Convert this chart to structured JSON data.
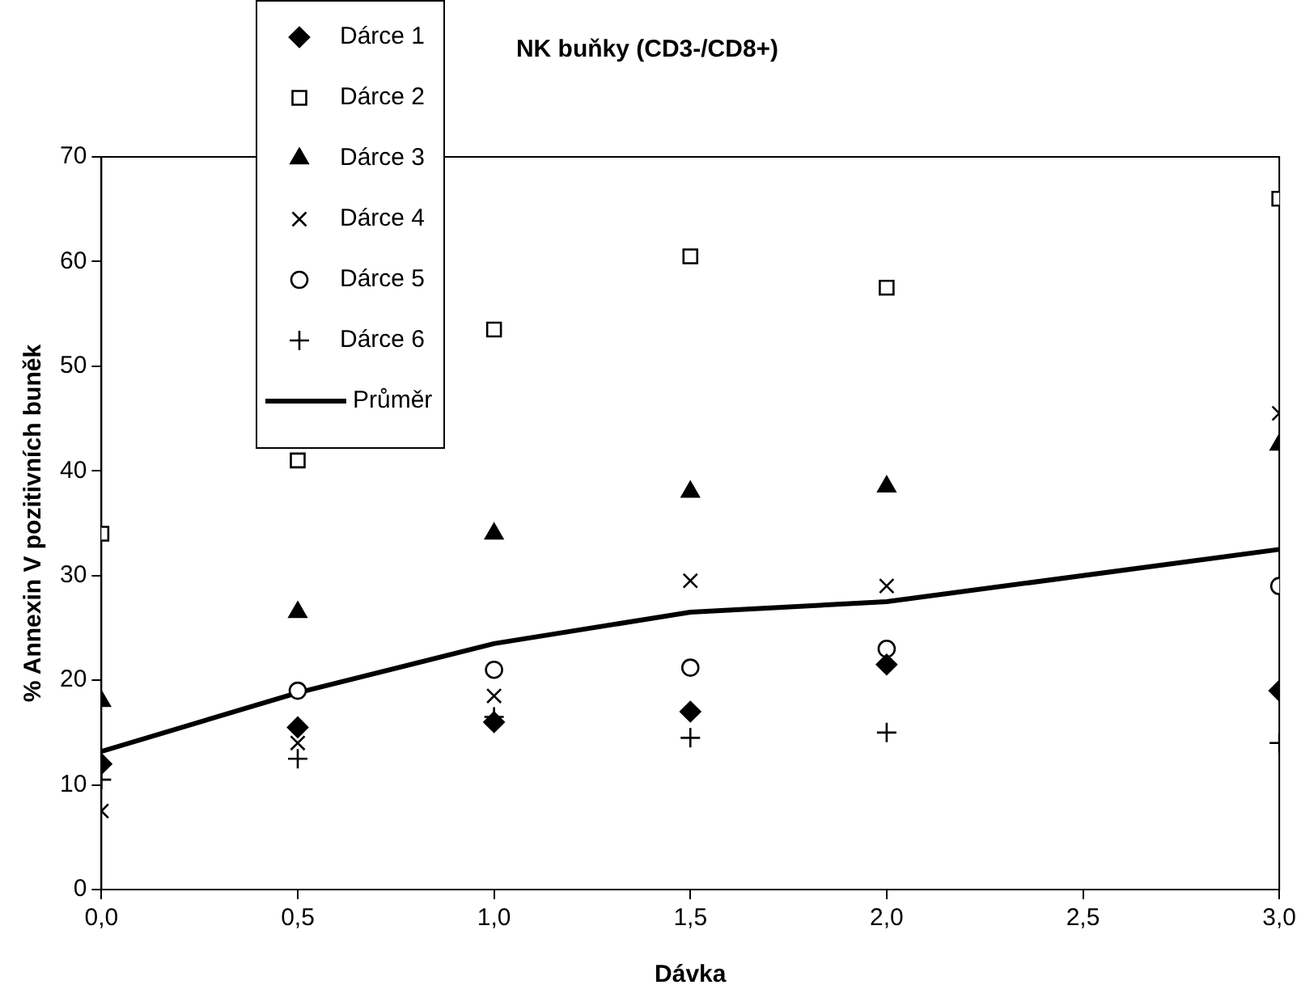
{
  "chart_data": {
    "type": "scatter",
    "title": "NK buňky (CD3-/CD8+)",
    "xlabel": "Dávka",
    "ylabel": "% Annexin V pozitivních buněk",
    "x": [
      0,
      0.5,
      1.0,
      1.5,
      2.0,
      3.0
    ],
    "series": [
      {
        "name": "Dárce 1",
        "color": "#000000",
        "marker": "diamond",
        "values": [
          12,
          15.5,
          16,
          17,
          21.5,
          19
        ]
      },
      {
        "name": "Dárce 2",
        "color": "#000000",
        "marker": "square",
        "values": [
          34,
          41,
          53.5,
          60.5,
          57.5,
          66
        ]
      },
      {
        "name": "Dárce 3",
        "color": "#000000",
        "marker": "triangle",
        "values": [
          18,
          26.5,
          34,
          38,
          38.5,
          42.5
        ]
      },
      {
        "name": "Dárce 4",
        "color": "#000000",
        "marker": "cross",
        "values": [
          7.5,
          14,
          18.5,
          29.5,
          29,
          45.5
        ]
      },
      {
        "name": "Dárce 5",
        "color": "#000000",
        "marker": "circle",
        "values": [
          null,
          19,
          21,
          21.2,
          23,
          29
        ]
      },
      {
        "name": "Dárce 6",
        "color": "#000000",
        "marker": "plus",
        "values": [
          10.5,
          12.5,
          16.5,
          14.5,
          15,
          14
        ]
      },
      {
        "name": "Průměr",
        "color": "#000000",
        "type": "line",
        "marker": "none",
        "line_style": "solid",
        "values": [
          13.2,
          18.8,
          23.5,
          26.5,
          27.5,
          32.5
        ]
      }
    ],
    "xlim": [
      0,
      3
    ],
    "xticks": [
      {
        "value": 0,
        "label": "0,0"
      },
      {
        "value": 0.5,
        "label": "0,5"
      },
      {
        "value": 1,
        "label": "1,0"
      },
      {
        "value": 1.5,
        "label": "1,5"
      },
      {
        "value": 2,
        "label": "2,0"
      },
      {
        "value": 2.5,
        "label": "2,5"
      },
      {
        "value": 3,
        "label": "3,0"
      }
    ],
    "ylim": [
      0,
      70
    ],
    "yticks": [
      0,
      10,
      20,
      30,
      40,
      50,
      60,
      70
    ],
    "grid": false,
    "legend": "top left"
  }
}
